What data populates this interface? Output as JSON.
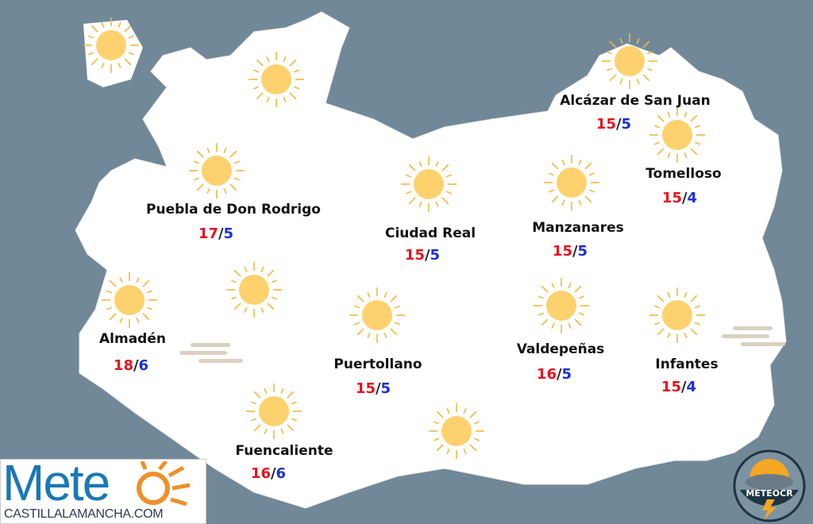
{
  "colors": {
    "background": "#718898",
    "land": "#ffffff",
    "max_temp": "#e8121e",
    "min_temp": "#1a2fd6",
    "sun": "#fdd26e",
    "sun_rays": "#f0b840",
    "fog": "#dcd0c0"
  },
  "cities": [
    {
      "name": "Alcázar de San Juan",
      "max": "15",
      "min": "5"
    },
    {
      "name": "Tomelloso",
      "max": "15",
      "min": "4"
    },
    {
      "name": "Puebla de Don Rodrigo",
      "max": "17",
      "min": "5"
    },
    {
      "name": "Ciudad Real",
      "max": "15",
      "min": "5"
    },
    {
      "name": "Manzanares",
      "max": "15",
      "min": "5"
    },
    {
      "name": "Almadén",
      "max": "18",
      "min": "6"
    },
    {
      "name": "Puertollano",
      "max": "15",
      "min": "5"
    },
    {
      "name": "Valdepeñas",
      "max": "16",
      "min": "5"
    },
    {
      "name": "Infantes",
      "max": "15",
      "min": "4"
    },
    {
      "name": "Fuencaliente",
      "max": "16",
      "min": "6"
    }
  ],
  "weather_icons": [
    "sun-icon",
    "fog-icon"
  ],
  "logos": {
    "meteo_clm": {
      "title": "Mete",
      "domain": "CASTILLALAMANCHA.COM"
    },
    "meteocr": "METEOCR"
  }
}
